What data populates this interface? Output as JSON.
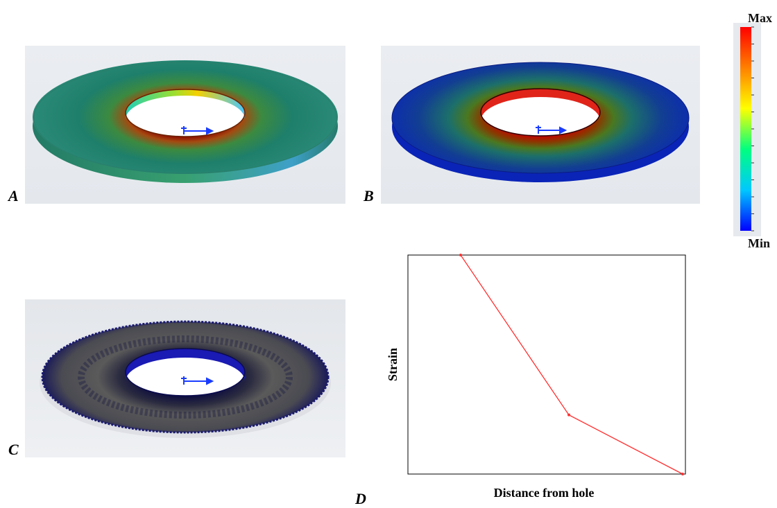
{
  "panels": [
    {
      "letter": "A"
    },
    {
      "letter": "B"
    },
    {
      "letter": "C"
    },
    {
      "letter": "D"
    }
  ],
  "color_scale": {
    "max_label": "Max",
    "min_label": "Min",
    "colors": [
      "#0000ff",
      "#00c8ff",
      "#00ff80",
      "#ffff00",
      "#ff8000",
      "#ff0000"
    ]
  },
  "chart_data": {
    "type": "line",
    "xlabel": "Distance from hole",
    "ylabel": "Strain",
    "x_ticks_shown": false,
    "y_ticks_shown": false,
    "xlim": [
      0,
      1
    ],
    "ylim": [
      0,
      1
    ],
    "series": [
      {
        "color": "#ff3030",
        "x": [
          0.19,
          0.58,
          0.99
        ],
        "y": [
          1.0,
          0.27,
          0.0
        ]
      }
    ]
  }
}
